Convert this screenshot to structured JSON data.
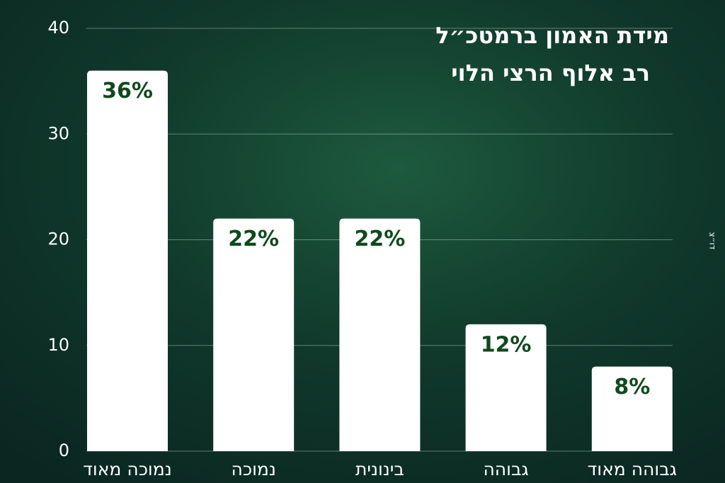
{
  "chart_data": {
    "type": "bar",
    "title": [
      "מידת האמון ברמטכ״ל",
      "רב אלוף הרצי הלוי"
    ],
    "credit": "דו״צ",
    "categories": [
      "נמוכה מאוד",
      "נמוכה",
      "בינונית",
      "גבוהה",
      "גבוהה מאוד"
    ],
    "values": [
      36,
      22,
      22,
      12,
      8
    ],
    "value_labels": [
      "36%",
      "22%",
      "22%",
      "12%",
      "8%"
    ],
    "color": "#ffffff",
    "label_color": "#0f4a1c",
    "ylim": [
      0,
      40
    ],
    "yticks": [
      0,
      10,
      20,
      30,
      40
    ],
    "grid": true
  }
}
